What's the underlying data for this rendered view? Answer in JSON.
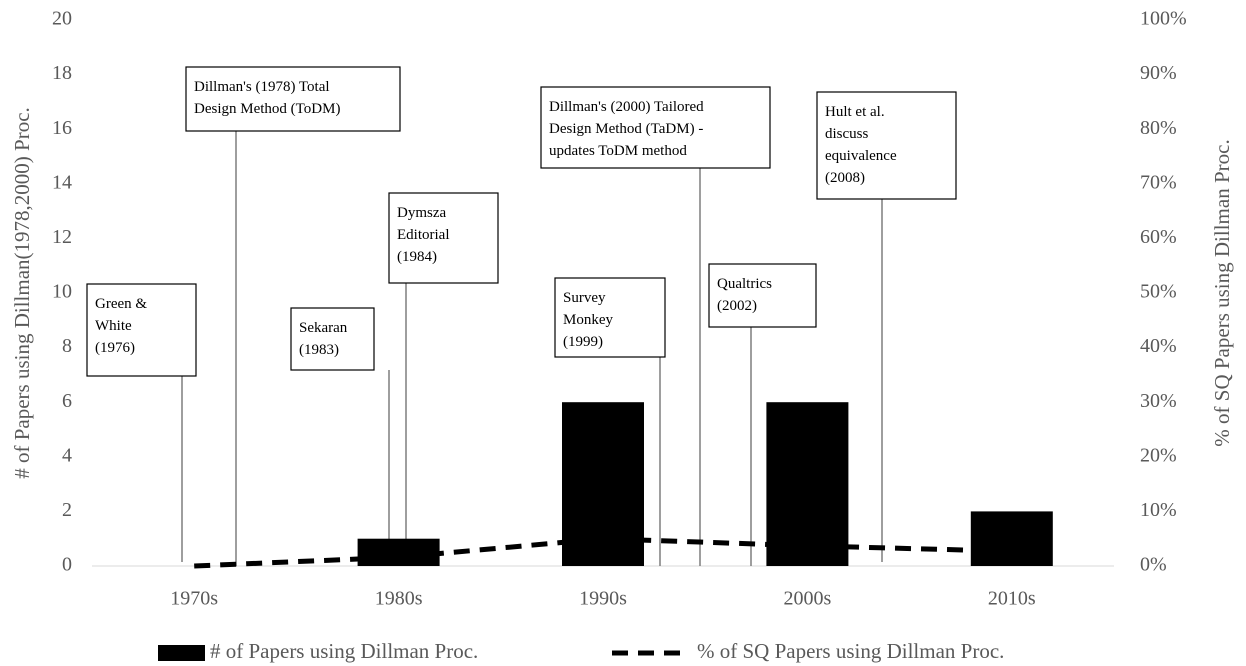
{
  "chart_data": {
    "type": "bar",
    "categories": [
      "1970s",
      "1980s",
      "1990s",
      "2000s",
      "2010s"
    ],
    "series": [
      {
        "name": "# of Papers using Dillman Proc.",
        "type": "bar",
        "color": "#000000",
        "values": [
          0,
          1,
          6,
          6,
          2
        ]
      },
      {
        "name": "% of SQ Papers using Dillman Proc.",
        "type": "line",
        "axis": "y2",
        "color": "#000000",
        "dashed": true,
        "values": [
          0,
          1.6,
          5,
          3.7,
          2.7
        ]
      }
    ],
    "ylabel": "# of Papers using Dillman(1978,2000) Proc.",
    "y2label": "% of SQ Papers using Dillman Proc.",
    "ylim": [
      0,
      20
    ],
    "yticks": [
      0,
      2,
      4,
      6,
      8,
      10,
      12,
      14,
      16,
      18,
      20
    ],
    "y2lim": [
      0,
      100
    ],
    "y2ticks": [
      {
        "value": 0,
        "label": "0%"
      },
      {
        "value": 10,
        "label": "10%"
      },
      {
        "value": 20,
        "label": "20%"
      },
      {
        "value": 30,
        "label": "30%"
      },
      {
        "value": 40,
        "label": "40%"
      },
      {
        "value": 50,
        "label": "50%"
      },
      {
        "value": 60,
        "label": "60%"
      },
      {
        "value": 70,
        "label": "70%"
      },
      {
        "value": 80,
        "label": "80%"
      },
      {
        "value": 90,
        "label": "90%"
      },
      {
        "value": 100,
        "label": "100%"
      }
    ],
    "legend": "bottom",
    "annotations": [
      {
        "lines": [
          "Green &",
          "White",
          "(1976)"
        ]
      },
      {
        "lines": [
          "Dillman's (1978) Total",
          "Design Method (ToDM)"
        ]
      },
      {
        "lines": [
          "Sekaran",
          "(1983)"
        ]
      },
      {
        "lines": [
          "Dymsza",
          "Editorial",
          "(1984)"
        ]
      },
      {
        "lines": [
          "Dillman's (2000) Tailored",
          "Design Method (TaDM) -",
          "updates ToDM method"
        ]
      },
      {
        "lines": [
          "Survey",
          "Monkey",
          "(1999)"
        ]
      },
      {
        "lines": [
          "Qualtrics",
          "(2002)"
        ]
      },
      {
        "lines": [
          "Hult et al.",
          "discuss",
          "equivalence",
          "(2008)"
        ]
      }
    ]
  }
}
